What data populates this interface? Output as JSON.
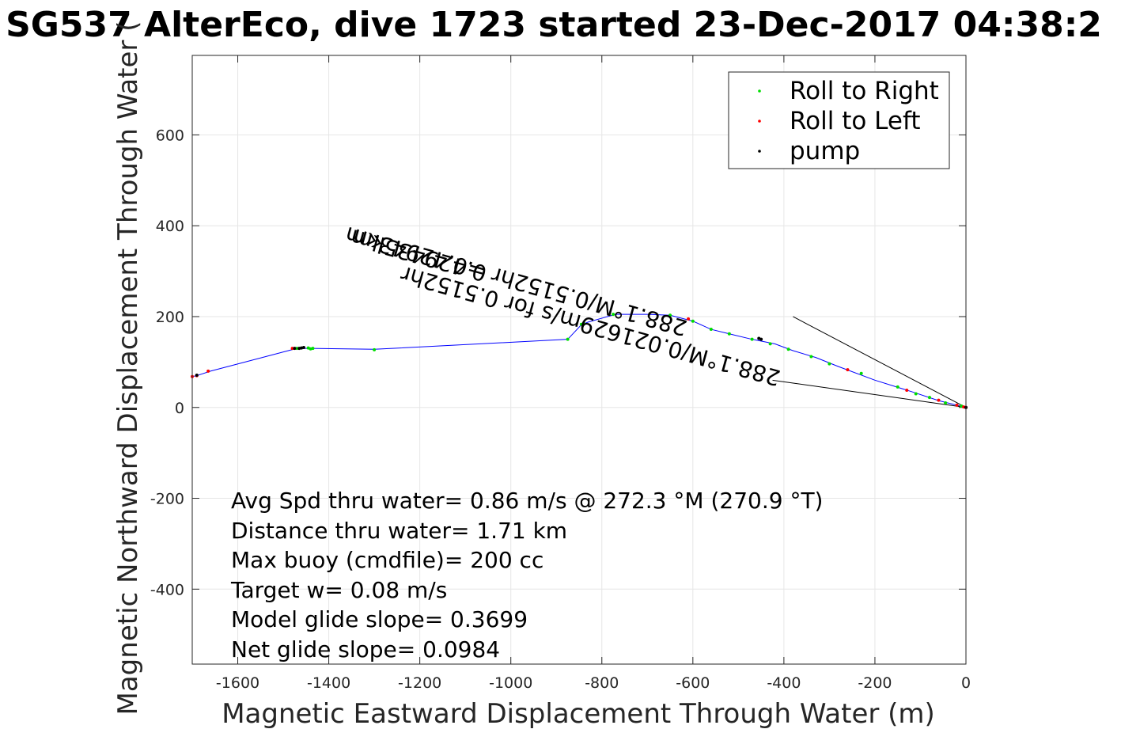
{
  "chart_data": {
    "type": "line",
    "title": "SG537 AlterEco, dive 1723 started 23-Dec-2017 04:38:2",
    "xlabel": "Magnetic Eastward Displacement Through Water (m)",
    "ylabel": "Magnetic Northward Displacement Through Water (",
    "xlim": [
      -1700,
      0
    ],
    "ylim": [
      -565,
      775
    ],
    "x_ticks": [
      -1600,
      -1400,
      -1200,
      -1000,
      -800,
      -600,
      -400,
      -200,
      0
    ],
    "y_ticks": [
      -400,
      -200,
      0,
      200,
      400,
      600
    ],
    "grid": true,
    "legend_position": "top-right",
    "legend": [
      {
        "label": "Roll to Right",
        "color": "#00dd00"
      },
      {
        "label": "Roll to Left",
        "color": "#ff0000"
      },
      {
        "label": "pump",
        "color": "#000000"
      }
    ],
    "track_color": "#0000ff",
    "track": [
      [
        0,
        0
      ],
      [
        -60,
        15
      ],
      [
        -120,
        35
      ],
      [
        -200,
        60
      ],
      [
        -280,
        90
      ],
      [
        -330,
        110
      ],
      [
        -380,
        125
      ],
      [
        -420,
        140
      ],
      [
        -470,
        150
      ],
      [
        -520,
        162
      ],
      [
        -560,
        172
      ],
      [
        -600,
        190
      ],
      [
        -650,
        203
      ],
      [
        -700,
        205
      ],
      [
        -770,
        205
      ],
      [
        -830,
        188
      ],
      [
        -845,
        182
      ],
      [
        -875,
        150
      ],
      [
        -1300,
        128
      ],
      [
        -1440,
        130
      ],
      [
        -1470,
        130
      ],
      [
        -1660,
        80
      ],
      [
        -1690,
        70
      ],
      [
        -1700,
        68
      ]
    ],
    "roll_right_points": [
      [
        -10,
        3
      ],
      [
        -45,
        10
      ],
      [
        -80,
        22
      ],
      [
        -110,
        30
      ],
      [
        -150,
        45
      ],
      [
        -230,
        75
      ],
      [
        -300,
        96
      ],
      [
        -340,
        112
      ],
      [
        -390,
        128
      ],
      [
        -430,
        140
      ],
      [
        -470,
        150
      ],
      [
        -520,
        162
      ],
      [
        -560,
        172
      ],
      [
        -600,
        190
      ],
      [
        -650,
        203
      ],
      [
        -775,
        205
      ],
      [
        -840,
        185
      ],
      [
        -845,
        183
      ],
      [
        -875,
        150
      ],
      [
        -1300,
        127
      ],
      [
        -1435,
        130
      ],
      [
        -1440,
        129
      ],
      [
        -1445,
        131
      ],
      [
        -1470,
        130
      ]
    ],
    "roll_left_points": [
      [
        0,
        0
      ],
      [
        -5,
        1
      ],
      [
        -20,
        5
      ],
      [
        -60,
        16
      ],
      [
        -130,
        38
      ],
      [
        -260,
        83
      ],
      [
        -610,
        195
      ],
      [
        -1480,
        130
      ],
      [
        -1690,
        70
      ],
      [
        -1700,
        68
      ],
      [
        -1665,
        80
      ]
    ],
    "pump_points": [
      [
        0,
        0
      ],
      [
        -450,
        150
      ],
      [
        -455,
        152
      ],
      [
        -1455,
        132
      ],
      [
        -1460,
        131
      ],
      [
        -1465,
        130
      ],
      [
        -1475,
        130
      ],
      [
        -1690,
        71
      ]
    ],
    "vectors": [
      {
        "from": [
          0,
          0
        ],
        "to": [
          -380,
          200
        ]
      },
      {
        "from": [
          0,
          0
        ],
        "to": [
          -425,
          60
        ]
      }
    ],
    "vector_labels": [
      {
        "text": "0.429435km",
        "x": -1050,
        "y": 310,
        "angle_deg": 195.5
      },
      {
        "text": "288.1°M/0.5152hr =0.42943km",
        "x": -610,
        "y": 190,
        "angle_deg": 195.5
      },
      {
        "text": "288.1°M/0.021629m/s for 0.5152hr",
        "x": -405,
        "y": 80,
        "angle_deg": 195.5
      }
    ],
    "annotations": [
      "Avg Spd thru water=  0.86 m/s @ 272.3 °M (270.9 °T)",
      "Distance thru water=  1.71 km",
      "Max buoy (cmdfile)= 200 cc",
      "Target w= 0.08 m/s",
      "Model glide slope= 0.3699",
      "Net glide slope= 0.0984"
    ]
  }
}
